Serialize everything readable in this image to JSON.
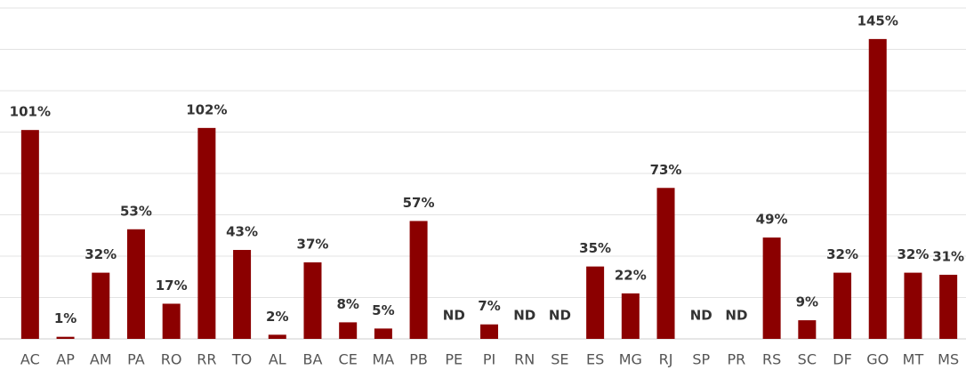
{
  "chart_data": {
    "type": "bar",
    "categories": [
      "AC",
      "AP",
      "AM",
      "PA",
      "RO",
      "RR",
      "TO",
      "AL",
      "BA",
      "CE",
      "MA",
      "PB",
      "PE",
      "PI",
      "RN",
      "SE",
      "ES",
      "MG",
      "RJ",
      "SP",
      "PR",
      "RS",
      "SC",
      "DF",
      "GO",
      "MT",
      "MS"
    ],
    "values": [
      101,
      1,
      32,
      53,
      17,
      102,
      43,
      2,
      37,
      8,
      5,
      57,
      null,
      7,
      null,
      null,
      35,
      22,
      73,
      null,
      null,
      49,
      9,
      32,
      145,
      32,
      31
    ],
    "value_labels": [
      "101%",
      "1%",
      "32%",
      "53%",
      "17%",
      "102%",
      "43%",
      "2%",
      "37%",
      "8%",
      "5%",
      "57%",
      "ND",
      "7%",
      "ND",
      "ND",
      "35%",
      "22%",
      "73%",
      "ND",
      "ND",
      "49%",
      "9%",
      "32%",
      "145%",
      "32%",
      "31%"
    ],
    "color": "#8b0000",
    "ylim": [
      0,
      160
    ],
    "yticks": [
      0,
      20,
      40,
      60,
      80,
      100,
      120,
      140,
      160
    ],
    "grid": true
  }
}
